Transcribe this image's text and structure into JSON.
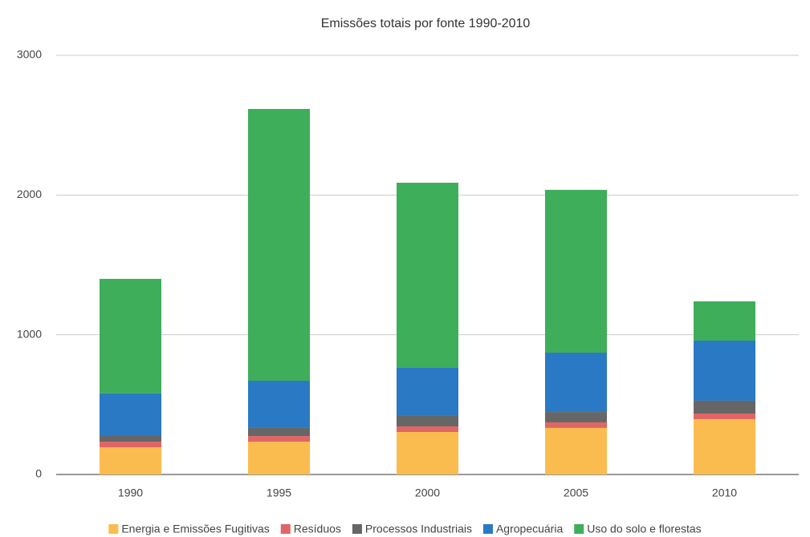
{
  "chart_data": {
    "type": "stacked_bar",
    "title": "Emissões totais por fonte 1990-2010",
    "categories": [
      "1990",
      "1995",
      "2000",
      "2005",
      "2010"
    ],
    "series": [
      {
        "name": "Energia e Emissões Fugitivas",
        "color": "#fbbc4f",
        "values": [
          195,
          235,
          304,
          333,
          396
        ]
      },
      {
        "name": "Resíduos",
        "color": "#e06666",
        "values": [
          40,
          40,
          40,
          40,
          40
        ]
      },
      {
        "name": "Processos Industriais",
        "color": "#666666",
        "values": [
          46,
          58,
          75,
          74,
          92
        ]
      },
      {
        "name": "Agropecuária",
        "color": "#2a79c4",
        "values": [
          299,
          338,
          344,
          425,
          430
        ]
      },
      {
        "name": "Uso do solo e florestas",
        "color": "#3eae5a",
        "values": [
          820,
          1945,
          1325,
          1165,
          281
        ]
      }
    ],
    "ylim": [
      0,
      3000
    ],
    "yticks": [
      0,
      1000,
      2000,
      3000
    ],
    "grid": true,
    "legend": "bottom"
  }
}
